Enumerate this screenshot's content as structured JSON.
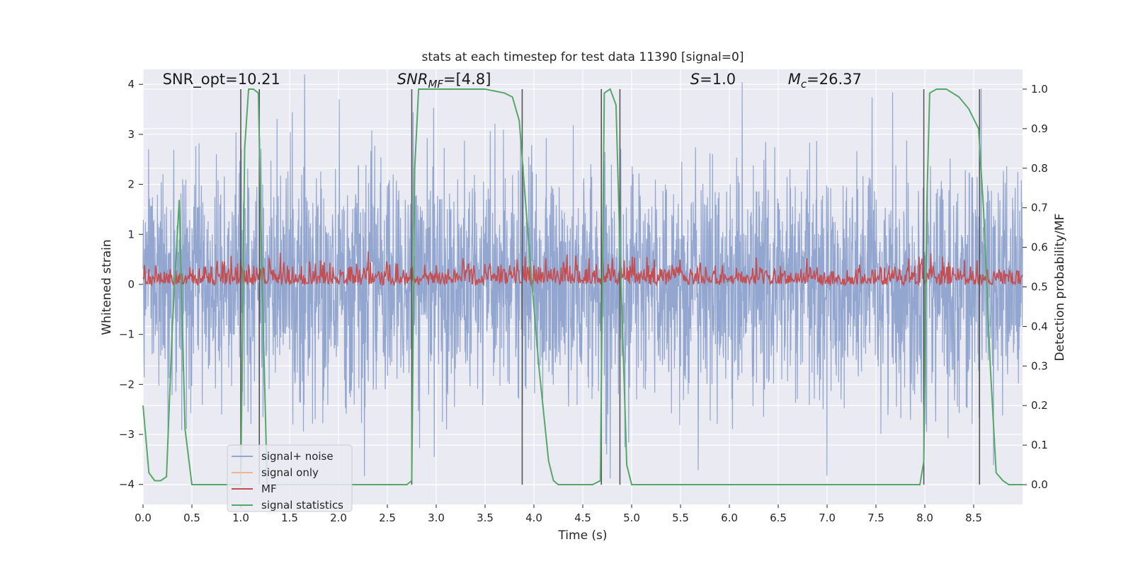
{
  "chart_data": {
    "type": "line",
    "title": "stats at each timestep for test data 11390 [signal=0]",
    "xlabel": "Time (s)",
    "ylabel_left": "Whitened strain",
    "ylabel_right": "Detection probability/MF",
    "xlim": [
      0.0,
      9.0
    ],
    "ylim_left": [
      -4.4,
      4.3
    ],
    "ylim_right": [
      -0.05,
      1.05
    ],
    "x_ticks": [
      "0.0",
      "0.5",
      "1.0",
      "1.5",
      "2.0",
      "2.5",
      "3.0",
      "3.5",
      "4.0",
      "4.5",
      "5.0",
      "5.5",
      "6.0",
      "6.5",
      "7.0",
      "7.5",
      "8.0",
      "8.5"
    ],
    "y_ticks_left": [
      "−4",
      "−3",
      "−2",
      "−1",
      "0",
      "1",
      "2",
      "3",
      "4"
    ],
    "y_ticks_right": [
      "0.0",
      "0.1",
      "0.2",
      "0.3",
      "0.4",
      "0.5",
      "0.6",
      "0.7",
      "0.8",
      "0.9",
      "1.0"
    ],
    "annotations": [
      {
        "text": "SNR_opt=10.21",
        "x": 0.2,
        "y": 4.1
      },
      {
        "text": "SNR_MF=[4.8]",
        "x": 2.6,
        "y": 4.1
      },
      {
        "text": "S=1.0",
        "x": 5.6,
        "y": 4.1
      },
      {
        "text": "M_c=26.37",
        "x": 6.6,
        "y": 4.1
      }
    ],
    "vertical_lines": [
      1.0,
      1.19,
      2.75,
      3.88,
      4.69,
      4.88,
      7.99,
      8.56
    ],
    "series": [
      {
        "name": "signal+ noise",
        "color": "#92a6cf",
        "kind": "noise",
        "amplitude_std": 1.0
      },
      {
        "name": "signal only",
        "color": "#f0b38f",
        "kind": "flat",
        "values": []
      },
      {
        "name": "MF",
        "color": "#c44e52",
        "kind": "mf",
        "mean": 0.52,
        "spread": 0.03
      },
      {
        "name": "signal statistics",
        "color": "#55a868",
        "x": [
          0.0,
          0.06,
          0.12,
          0.18,
          0.24,
          0.3,
          0.37,
          0.43,
          0.5,
          0.6,
          1.0,
          1.04,
          1.08,
          1.13,
          1.18,
          1.22,
          1.27,
          1.35,
          2.7,
          2.75,
          2.78,
          2.82,
          3.5,
          3.7,
          3.78,
          3.85,
          3.95,
          4.05,
          4.15,
          4.2,
          4.25,
          4.6,
          4.68,
          4.72,
          4.78,
          4.84,
          4.88,
          4.95,
          5.0,
          5.05,
          7.95,
          7.99,
          8.02,
          8.05,
          8.12,
          8.22,
          8.35,
          8.45,
          8.55,
          8.6,
          8.67,
          8.73,
          8.8,
          8.86,
          9.0
        ],
        "values": [
          0.2,
          0.03,
          0.01,
          0.01,
          0.02,
          0.4,
          0.72,
          0.14,
          0.0,
          0.0,
          0.0,
          0.85,
          1.0,
          1.0,
          0.99,
          0.5,
          0.0,
          0.0,
          0.0,
          0.01,
          0.8,
          1.0,
          1.0,
          0.99,
          0.98,
          0.92,
          0.6,
          0.3,
          0.06,
          0.01,
          0.0,
          0.0,
          0.01,
          0.99,
          1.0,
          0.96,
          0.6,
          0.05,
          0.0,
          0.0,
          0.0,
          0.06,
          0.7,
          0.99,
          1.0,
          1.0,
          0.98,
          0.95,
          0.9,
          0.7,
          0.3,
          0.03,
          0.01,
          0.0,
          0.0
        ]
      }
    ],
    "legend_location": "lower-left",
    "grid": true,
    "colors": {
      "plot_background": "#eaeaf2",
      "grid": "#ffffff",
      "vertical_line": "#555555"
    }
  }
}
